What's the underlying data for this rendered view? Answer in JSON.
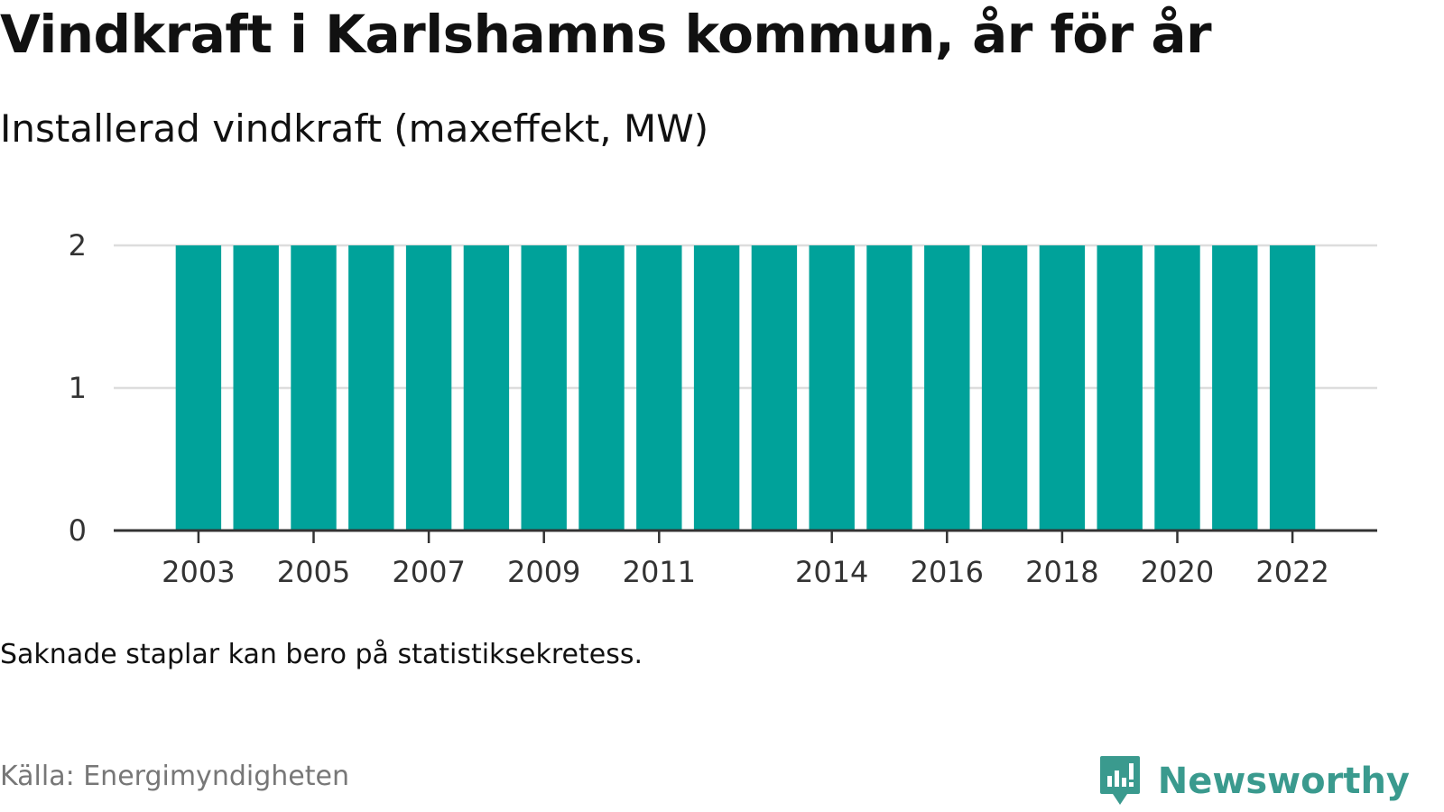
{
  "header": {
    "title": "Vindkraft i Karlshamns kommun, år för år",
    "subtitle": "Installerad vindkraft (maxeffekt, MW)"
  },
  "chart_data": {
    "type": "bar",
    "title": "Vindkraft i Karlshamns kommun, år för år",
    "subtitle": "Installerad vindkraft (maxeffekt, MW)",
    "categories": [
      "2003",
      "2004",
      "2005",
      "2006",
      "2007",
      "2008",
      "2009",
      "2010",
      "2011",
      "2012",
      "2013",
      "2014",
      "2015",
      "2016",
      "2017",
      "2018",
      "2019",
      "2020",
      "2021",
      "2022"
    ],
    "values": [
      2,
      2,
      2,
      2,
      2,
      2,
      2,
      2,
      2,
      2,
      2,
      2,
      2,
      2,
      2,
      2,
      2,
      2,
      2,
      2
    ],
    "x_tick_labels": [
      "2003",
      "2005",
      "2007",
      "2009",
      "2011",
      "2014",
      "2016",
      "2018",
      "2020",
      "2022"
    ],
    "y_ticks": [
      0,
      1,
      2
    ],
    "ylim": [
      0,
      2
    ],
    "xlabel": "",
    "ylabel": "",
    "grid": true,
    "bar_color": "#00a29a",
    "grid_color": "#dddddd",
    "axis_color": "#333333"
  },
  "footer": {
    "note": "Saknade staplar kan bero på statistiksekretess.",
    "source": "Källa: Energimyndigheten",
    "brand": "Newsworthy",
    "brand_color": "#3a9a8e",
    "brand_icon": "newsworthy-logo-icon"
  }
}
